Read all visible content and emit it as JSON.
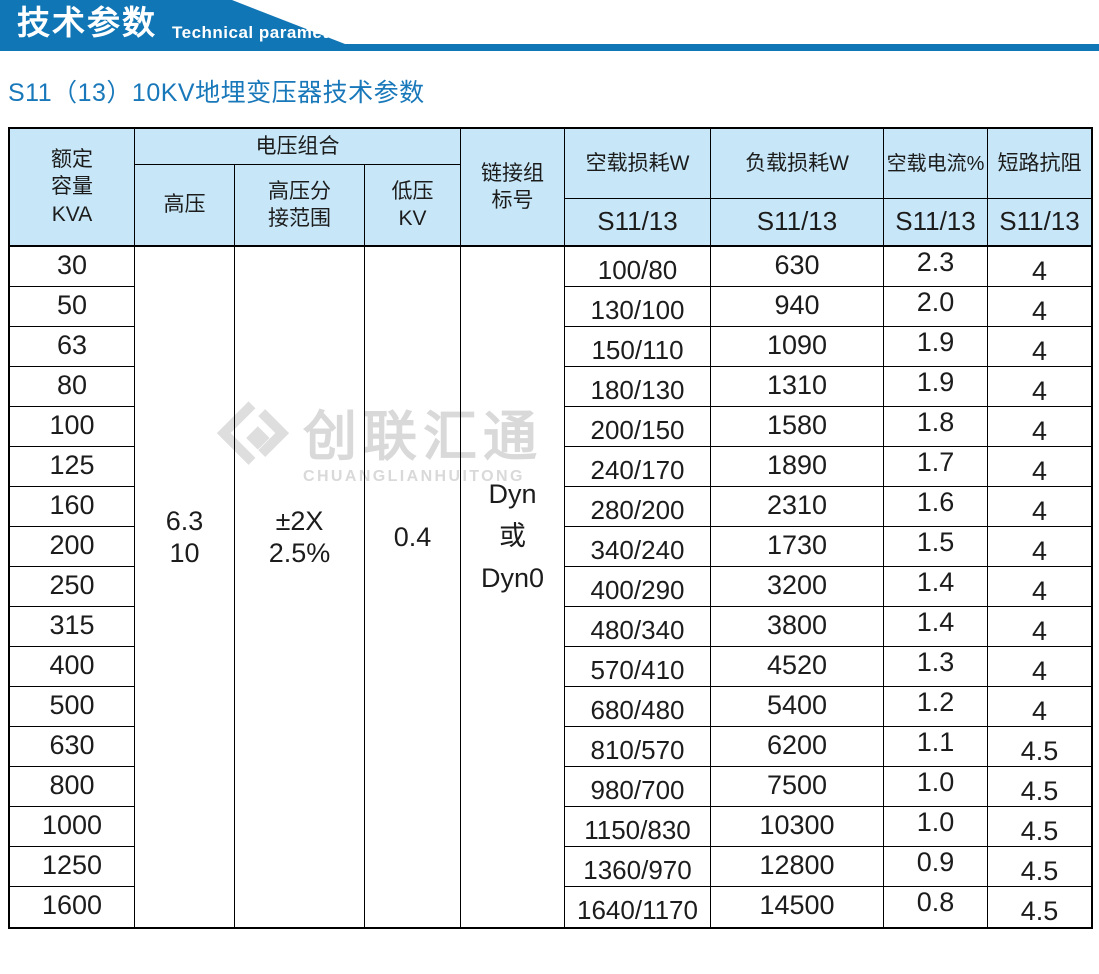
{
  "banner": {
    "title_cn": "技术参数",
    "title_en": "Technical parameter",
    "color": "#1176b5"
  },
  "page": {
    "title": "S11（13）10KV地埋变压器技术参数",
    "title_color": "#1878ba"
  },
  "watermark": {
    "icon": "diamond-logo",
    "text_cn": "创联汇通",
    "text_en": "CHUANGLIANHUITONG",
    "color": "#d9d9d9"
  },
  "colors": {
    "header_bg": "#c7e7f8",
    "border": "#000000",
    "body_bg": "#ffffff"
  },
  "table": {
    "header": {
      "capacity": "额定\n容量\nKVA",
      "voltage_group": "电压组合",
      "hv": "高压",
      "hv_tap": "高压分\n接范围",
      "lv": "低压\nKV",
      "connection": "链接组\n标号",
      "no_load_loss": "空载损耗W",
      "load_loss": "负载损耗W",
      "no_load_current": "空载电流%",
      "impedance": "短路抗阻",
      "model": "S11/13"
    },
    "merged": {
      "hv_value": "6.3\n10",
      "tap_value": "±2X\n2.5%",
      "lv_value": "0.4",
      "connection_value": "Dyn\n或\nDyn0"
    },
    "rows": [
      {
        "kva": "30",
        "no_load": "100/80",
        "load": "630",
        "current": "2.3",
        "impedance": "4"
      },
      {
        "kva": "50",
        "no_load": "130/100",
        "load": "940",
        "current": "2.0",
        "impedance": "4"
      },
      {
        "kva": "63",
        "no_load": "150/110",
        "load": "1090",
        "current": "1.9",
        "impedance": "4"
      },
      {
        "kva": "80",
        "no_load": "180/130",
        "load": "1310",
        "current": "1.9",
        "impedance": "4"
      },
      {
        "kva": "100",
        "no_load": "200/150",
        "load": "1580",
        "current": "1.8",
        "impedance": "4"
      },
      {
        "kva": "125",
        "no_load": "240/170",
        "load": "1890",
        "current": "1.7",
        "impedance": "4"
      },
      {
        "kva": "160",
        "no_load": "280/200",
        "load": "2310",
        "current": "1.6",
        "impedance": "4"
      },
      {
        "kva": "200",
        "no_load": "340/240",
        "load": "1730",
        "current": "1.5",
        "impedance": "4"
      },
      {
        "kva": "250",
        "no_load": "400/290",
        "load": "3200",
        "current": "1.4",
        "impedance": "4"
      },
      {
        "kva": "315",
        "no_load": "480/340",
        "load": "3800",
        "current": "1.4",
        "impedance": "4"
      },
      {
        "kva": "400",
        "no_load": "570/410",
        "load": "4520",
        "current": "1.3",
        "impedance": "4"
      },
      {
        "kva": "500",
        "no_load": "680/480",
        "load": "5400",
        "current": "1.2",
        "impedance": "4"
      },
      {
        "kva": "630",
        "no_load": "810/570",
        "load": "6200",
        "current": "1.1",
        "impedance": "4.5"
      },
      {
        "kva": "800",
        "no_load": "980/700",
        "load": "7500",
        "current": "1.0",
        "impedance": "4.5"
      },
      {
        "kva": "1000",
        "no_load": "1150/830",
        "load": "10300",
        "current": "1.0",
        "impedance": "4.5"
      },
      {
        "kva": "1250",
        "no_load": "1360/970",
        "load": "12800",
        "current": "0.9",
        "impedance": "4.5"
      },
      {
        "kva": "1600",
        "no_load": "1640/1170",
        "load": "14500",
        "current": "0.8",
        "impedance": "4.5"
      }
    ]
  }
}
